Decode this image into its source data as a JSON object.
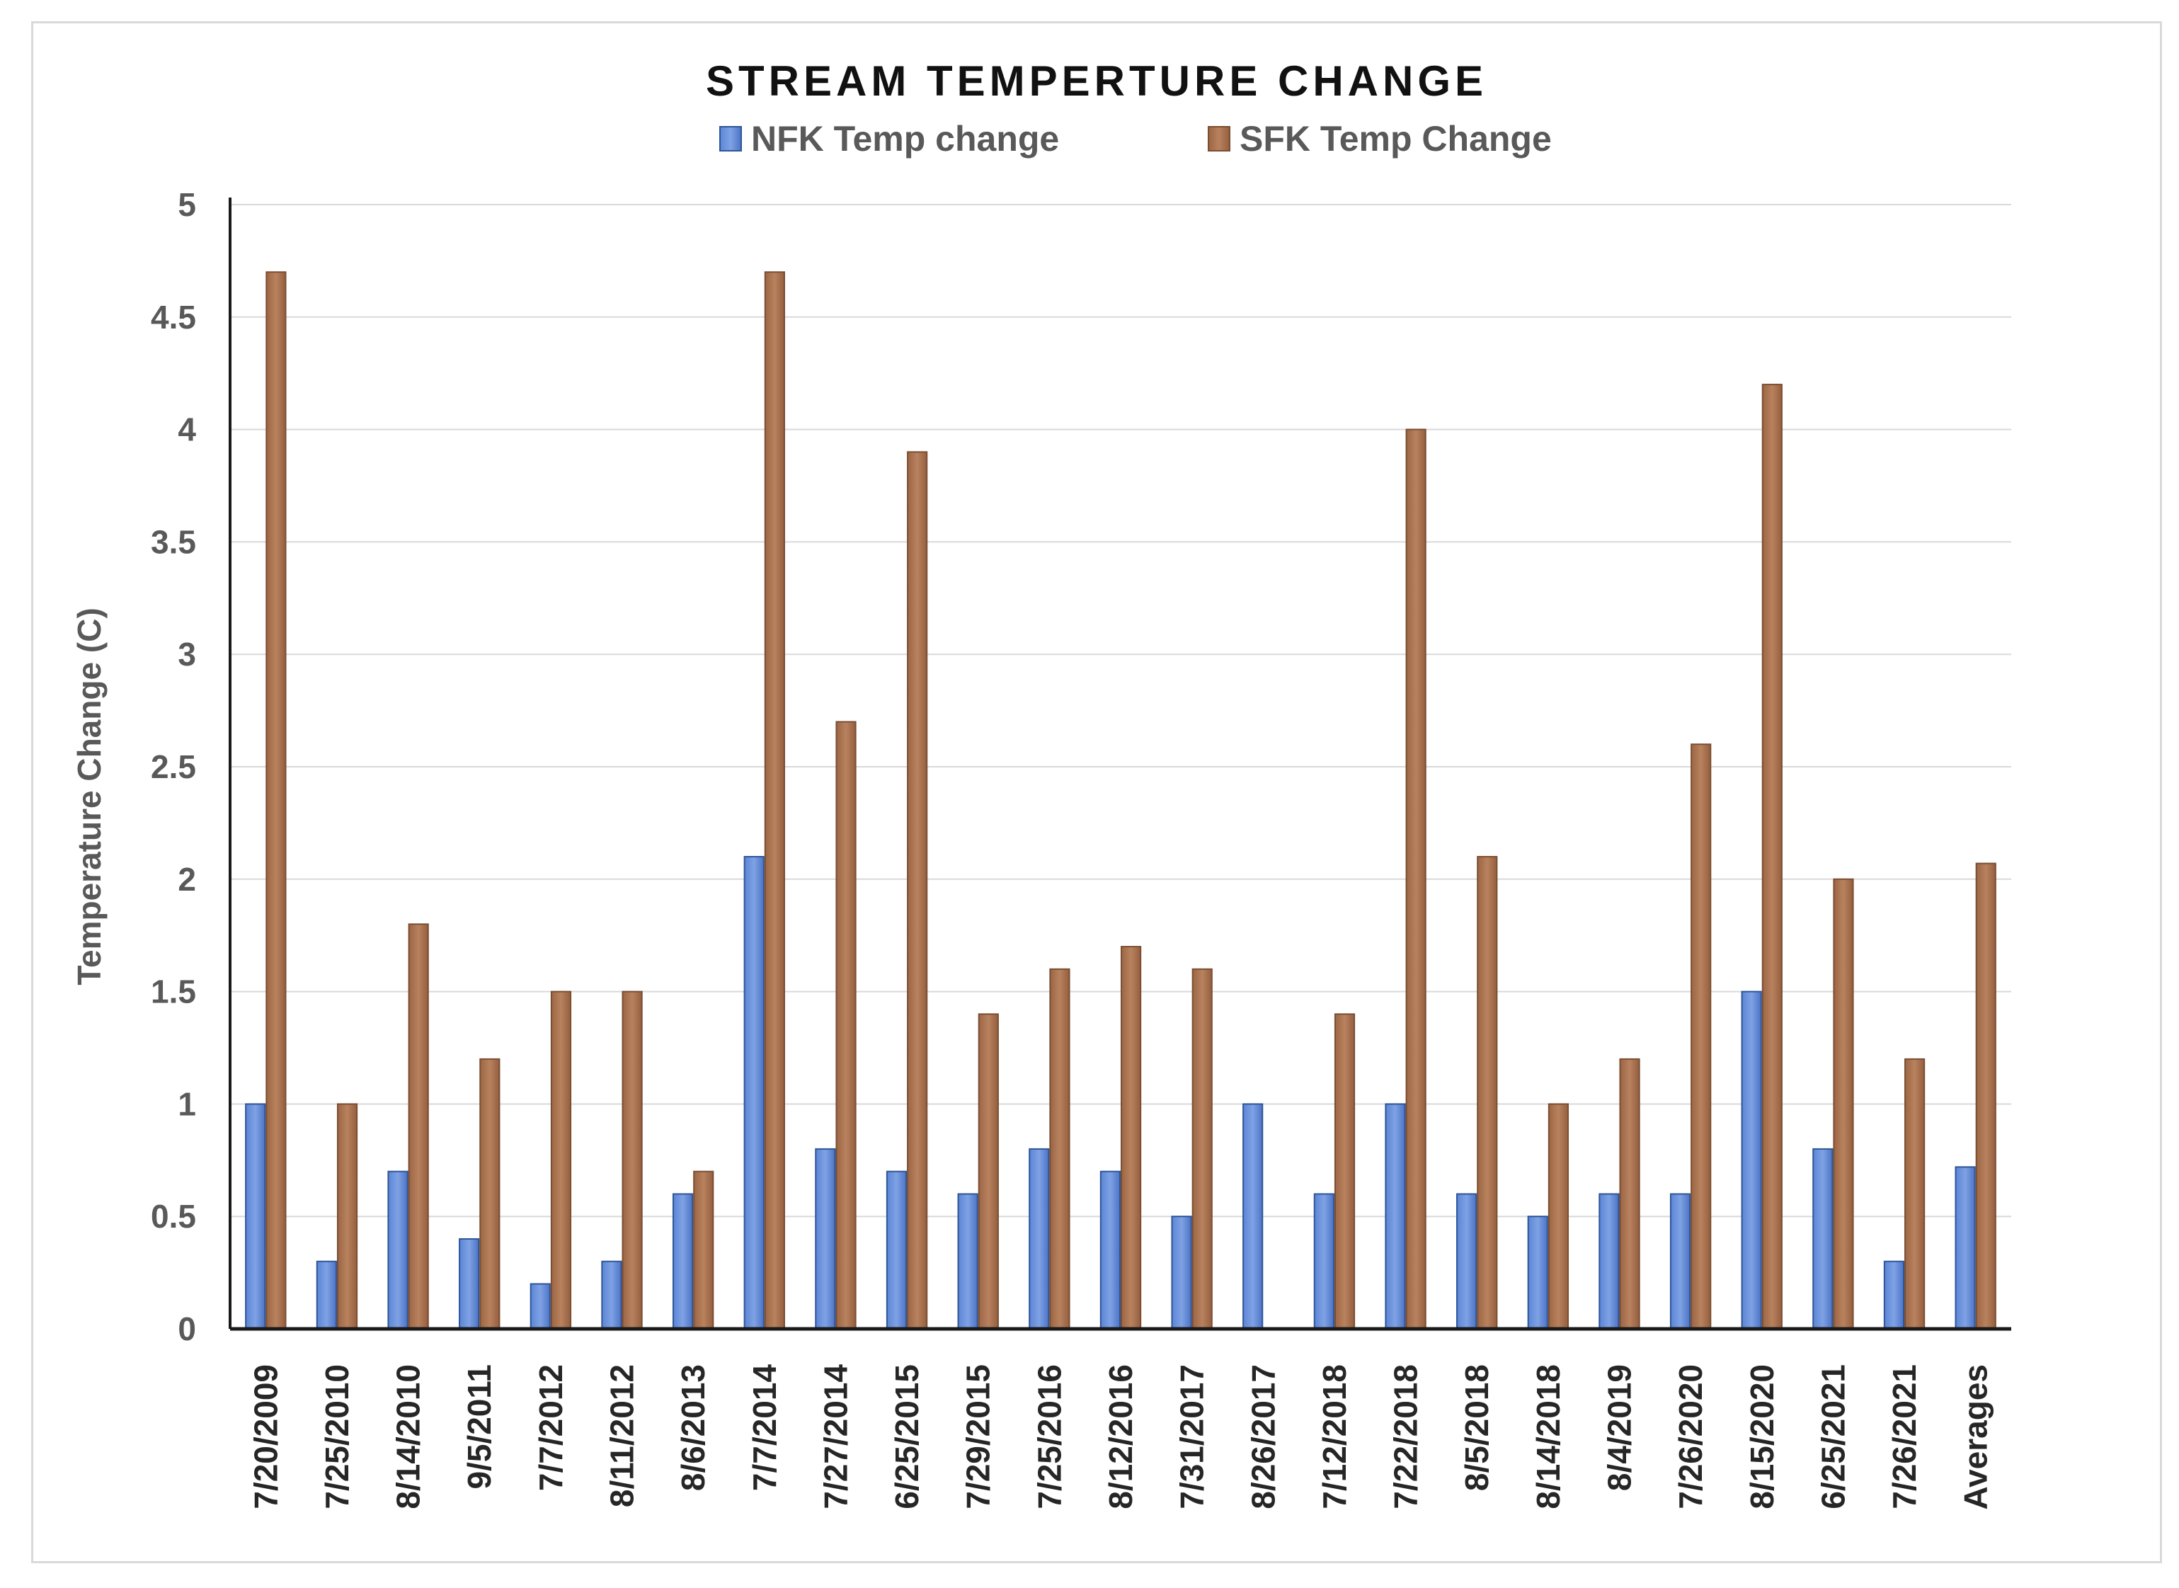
{
  "chart_data": {
    "type": "bar",
    "title": "STREAM TEMPERTURE CHANGE",
    "xlabel": "",
    "ylabel": "Temperature Change (C)",
    "ylim": [
      0,
      5
    ],
    "yticks": [
      "0",
      "0.5",
      "1",
      "1.5",
      "2",
      "2.5",
      "3",
      "3.5",
      "4",
      "4.5",
      "5"
    ],
    "grid": true,
    "legend_position": "top-center",
    "categories": [
      "7/20/2009",
      "7/25/2010",
      "8/14/2010",
      "9/5/2011",
      "7/7/2012",
      "8/11/2012",
      "8/6/2013",
      "7/7/2014",
      "7/27/2014",
      "6/25/2015",
      "7/29/2015",
      "7/25/2016",
      "8/12/2016",
      "7/31/2017",
      "8/26/2017",
      "7/12/2018",
      "7/22/2018",
      "8/5/2018",
      "8/14/2018",
      "8/4/2019",
      "7/26/2020",
      "8/15/2020",
      "6/25/2021",
      "7/26/2021",
      "Averages"
    ],
    "series": [
      {
        "name": "NFK Temp change",
        "color": "#4472C4",
        "values": [
          1.0,
          0.3,
          0.7,
          0.4,
          0.2,
          0.3,
          0.6,
          2.1,
          0.8,
          0.7,
          0.6,
          0.8,
          0.7,
          0.5,
          1.0,
          0.6,
          1.0,
          0.6,
          0.5,
          0.6,
          0.6,
          1.5,
          0.8,
          0.3,
          0.72
        ]
      },
      {
        "name": "SFK Temp Change",
        "color": "#A5704F",
        "values": [
          4.7,
          1.0,
          1.8,
          1.2,
          1.5,
          1.5,
          0.7,
          4.7,
          2.7,
          3.9,
          1.4,
          1.6,
          1.7,
          1.6,
          0,
          1.4,
          4.0,
          2.1,
          1.0,
          1.2,
          2.6,
          4.2,
          2.0,
          1.2,
          2.07
        ]
      }
    ]
  }
}
